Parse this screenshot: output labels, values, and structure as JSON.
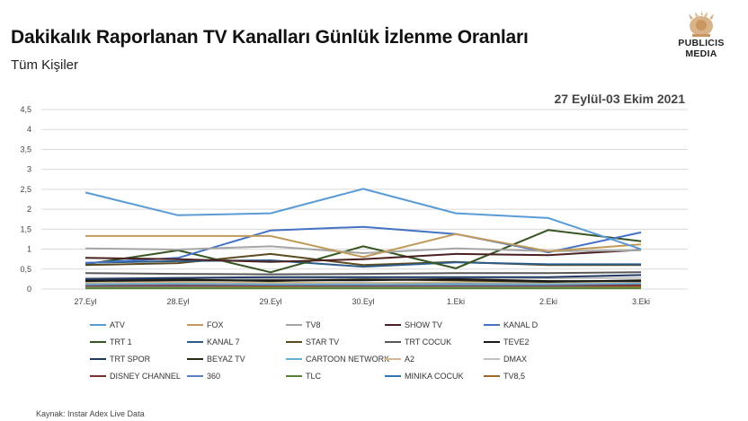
{
  "header": {
    "title": "Dakikalık Raporlanan TV Kanalları Günlük İzlenme Oranları",
    "subtitle": "Tüm Kişiler",
    "period": "27 Eylül-03 Ekim 2021",
    "source": "Kaynak: Instar  Adex Live Data",
    "logo_line1": "PUBLICIS",
    "logo_line2": "MEDIA"
  },
  "chart_data": {
    "type": "line",
    "categories": [
      "27.Eyl",
      "28.Eyl",
      "29.Eyl",
      "30.Eyl",
      "1.Eki",
      "2.Eki",
      "3.Eki"
    ],
    "ylim": [
      0,
      4.5
    ],
    "yticks": [
      "0",
      "0,5",
      "1",
      "1,5",
      "2",
      "2,5",
      "3",
      "3,5",
      "4",
      "4,5"
    ],
    "grid": true,
    "legend_position": "bottom",
    "series": [
      {
        "name": "ATV",
        "color": "#5b9bd5",
        "values": [
          2.42,
          1.85,
          1.9,
          2.51,
          1.9,
          1.78,
          1.0
        ]
      },
      {
        "name": "FOX",
        "color": "#c09a5b",
        "values": [
          1.33,
          1.33,
          1.33,
          0.8,
          1.38,
          0.95,
          1.12
        ]
      },
      {
        "name": "TV8",
        "color": "#a5a5a5",
        "values": [
          1.02,
          0.99,
          1.07,
          0.9,
          1.02,
          0.95,
          0.97
        ]
      },
      {
        "name": "SHOW TV",
        "color": "#4a2020",
        "values": [
          0.78,
          0.75,
          0.68,
          0.75,
          0.88,
          0.85,
          0.98
        ]
      },
      {
        "name": "KANAL D",
        "color": "#4472c4",
        "values": [
          0.65,
          0.78,
          1.47,
          1.56,
          1.38,
          0.92,
          1.42
        ]
      },
      {
        "name": "TRT 1",
        "color": "#375623",
        "values": [
          0.62,
          0.97,
          0.42,
          1.07,
          0.52,
          1.48,
          1.2
        ]
      },
      {
        "name": "KANAL 7",
        "color": "#2e5c8a",
        "values": [
          0.66,
          0.7,
          0.72,
          0.56,
          0.67,
          0.62,
          0.62
        ]
      },
      {
        "name": "STAR TV",
        "color": "#5c4a20",
        "values": [
          0.6,
          0.65,
          0.88,
          0.6,
          0.68,
          0.6,
          0.6
        ]
      },
      {
        "name": "TRT COCUK",
        "color": "#595959",
        "values": [
          0.4,
          0.38,
          0.37,
          0.38,
          0.4,
          0.4,
          0.42
        ]
      },
      {
        "name": "TEVE2",
        "color": "#1a1a1a",
        "values": [
          0.2,
          0.22,
          0.22,
          0.22,
          0.25,
          0.2,
          0.2
        ]
      },
      {
        "name": "TRT SPOR",
        "color": "#1f3864",
        "values": [
          0.25,
          0.28,
          0.3,
          0.3,
          0.3,
          0.3,
          0.35
        ]
      },
      {
        "name": "BEYAZ TV",
        "color": "#2b2a10",
        "values": [
          0.22,
          0.24,
          0.2,
          0.24,
          0.22,
          0.18,
          0.22
        ]
      },
      {
        "name": "CARTOON NETWORK",
        "color": "#6aaed6",
        "values": [
          0.12,
          0.13,
          0.12,
          0.12,
          0.12,
          0.12,
          0.14
        ]
      },
      {
        "name": "A2",
        "color": "#d6b98a",
        "values": [
          0.16,
          0.17,
          0.16,
          0.15,
          0.17,
          0.16,
          0.16
        ]
      },
      {
        "name": "DMAX",
        "color": "#c0c0c0",
        "values": [
          0.28,
          0.28,
          0.26,
          0.26,
          0.28,
          0.27,
          0.28
        ]
      },
      {
        "name": "DISNEY CHANNEL",
        "color": "#7b3030",
        "values": [
          0.1,
          0.1,
          0.1,
          0.1,
          0.1,
          0.1,
          0.1
        ]
      },
      {
        "name": "360",
        "color": "#5b7fc4",
        "values": [
          0.08,
          0.08,
          0.09,
          0.08,
          0.08,
          0.08,
          0.1
        ]
      },
      {
        "name": "TLC",
        "color": "#548235",
        "values": [
          0.02,
          0.02,
          0.02,
          0.02,
          0.02,
          0.02,
          0.02
        ]
      },
      {
        "name": "MINIKA COCUK",
        "color": "#2f75b5",
        "values": [
          0.14,
          0.15,
          0.14,
          0.15,
          0.14,
          0.16,
          0.16
        ]
      },
      {
        "name": "TV8,5",
        "color": "#9c6a2a",
        "values": [
          0.06,
          0.06,
          0.06,
          0.06,
          0.06,
          0.06,
          0.06
        ]
      }
    ]
  }
}
